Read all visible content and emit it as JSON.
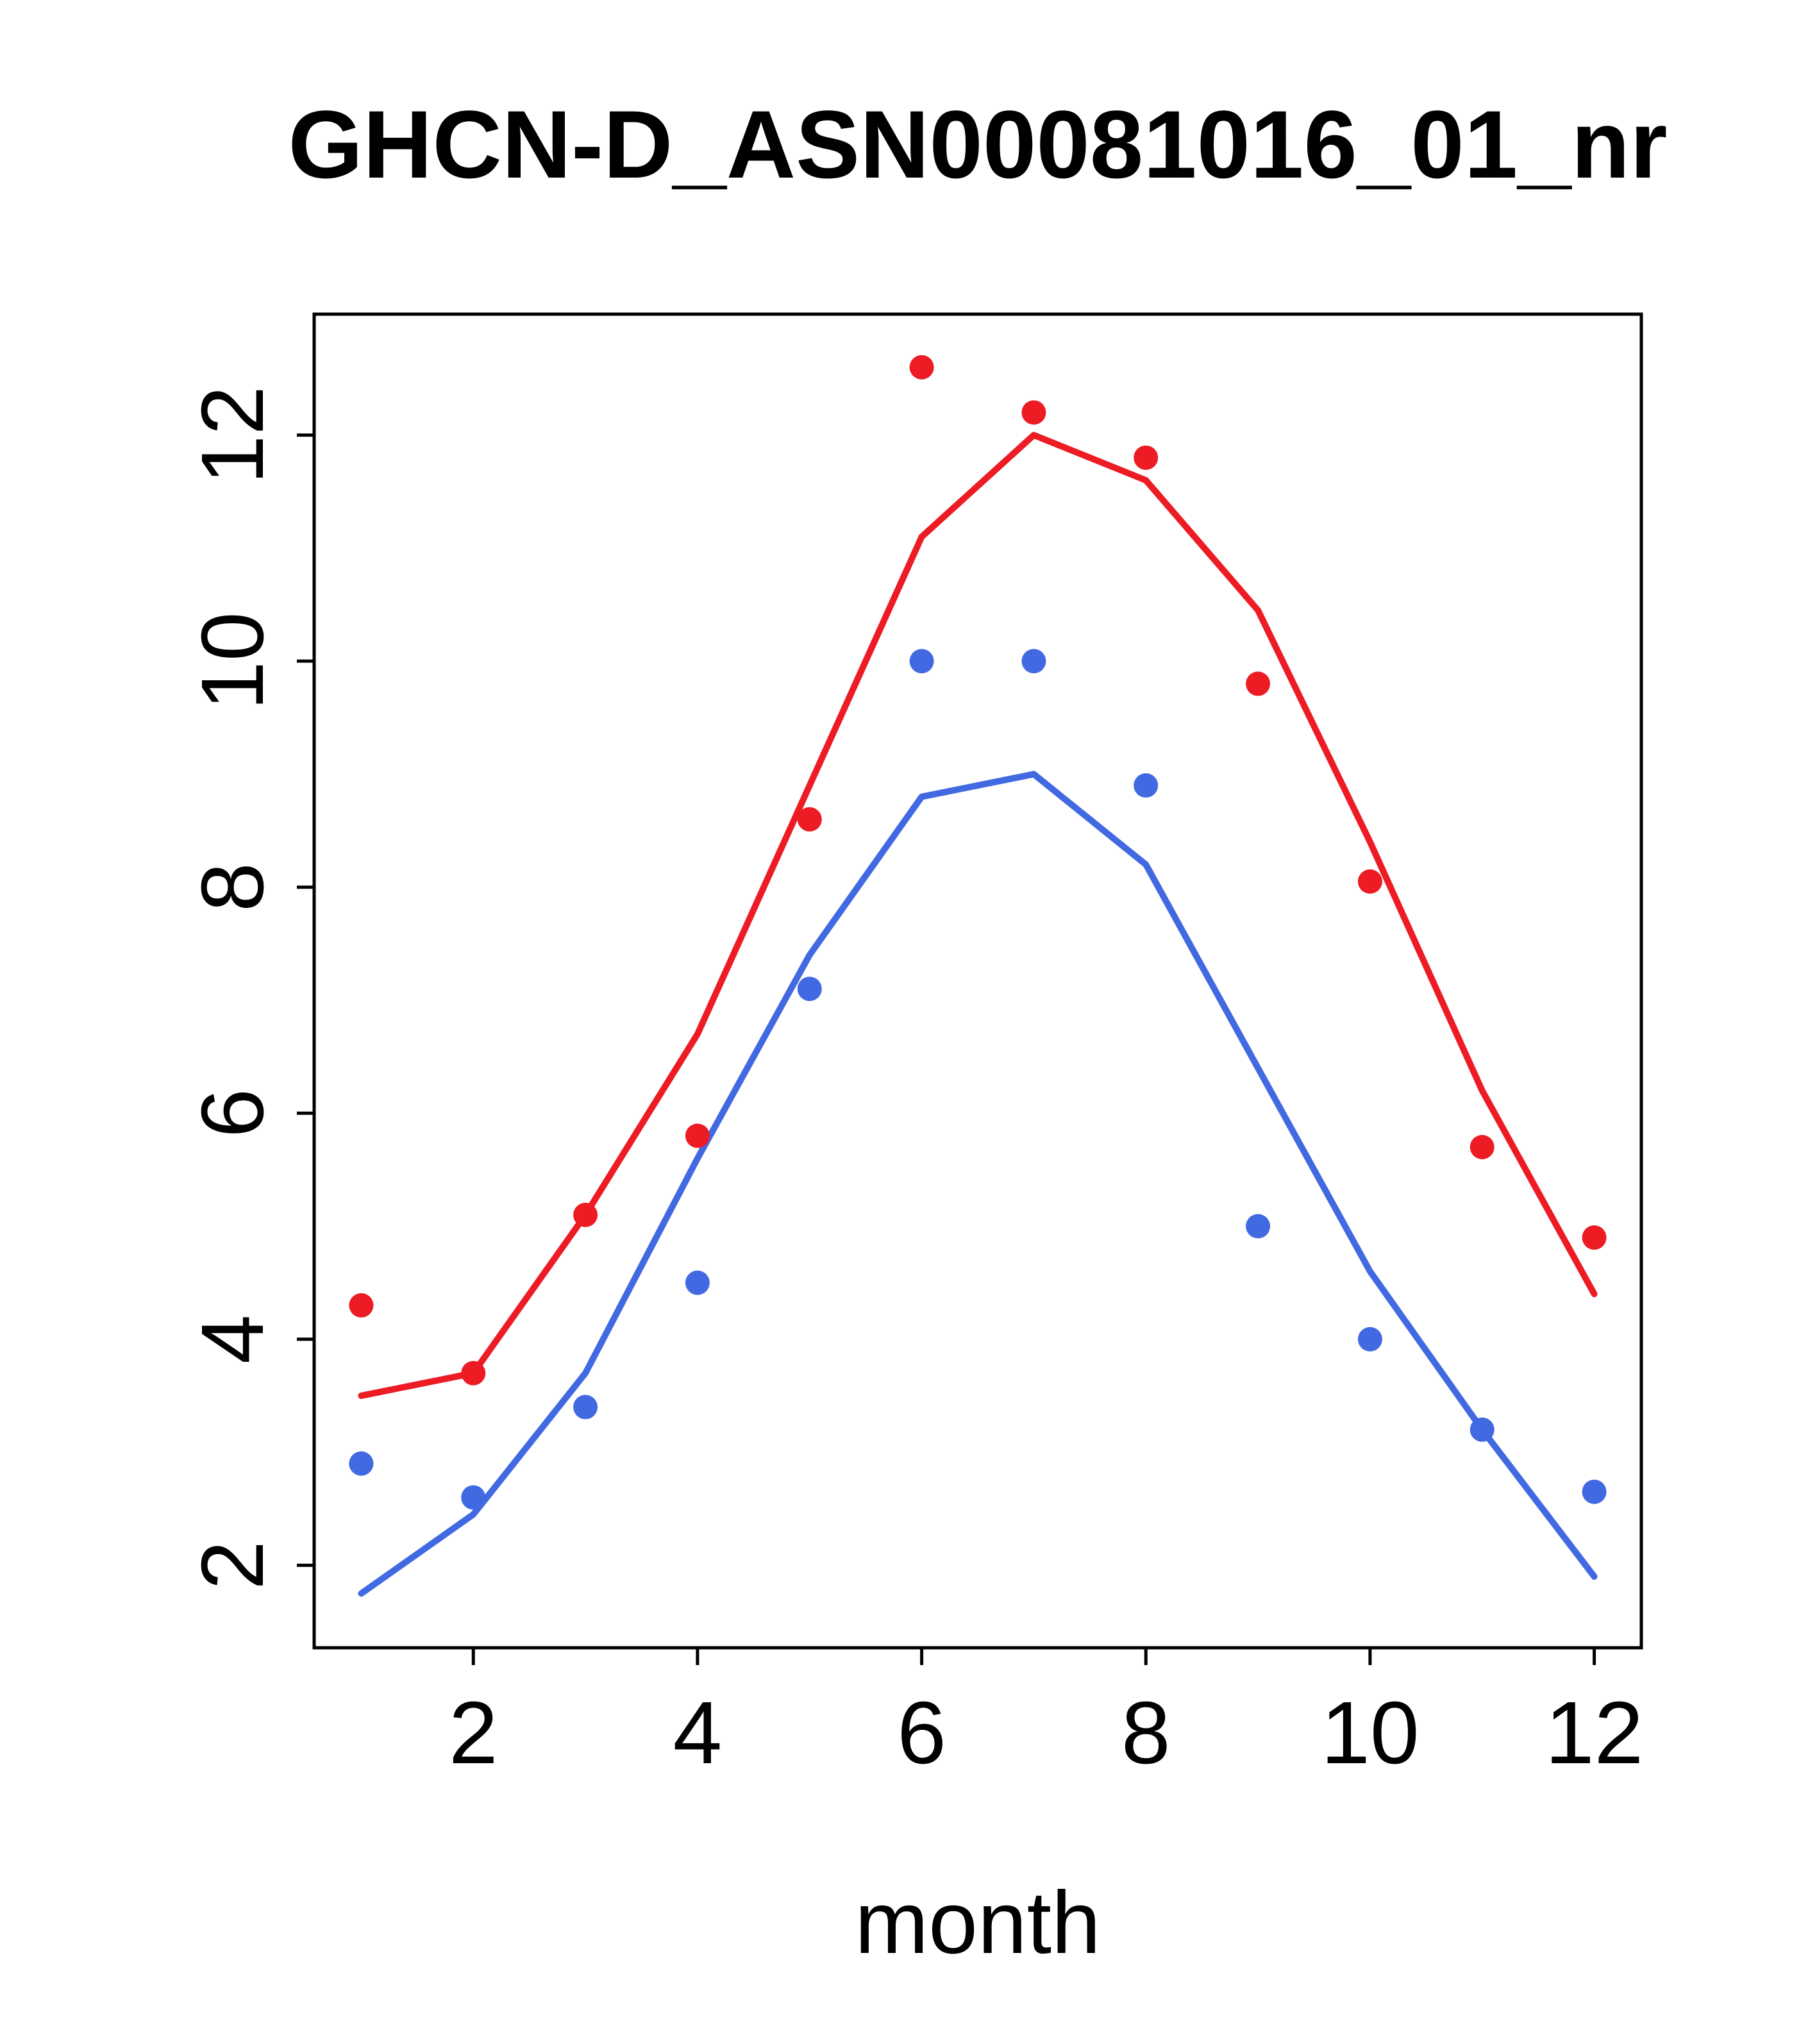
{
  "figure": {
    "background": "#ffffff",
    "frame_color": "#000000"
  },
  "chart_data": {
    "type": "scatter+line",
    "title": "GHCN-D_ASN00081016_01_nr",
    "xlabel": "month",
    "ylabel": "",
    "x": [
      1,
      2,
      3,
      4,
      5,
      6,
      7,
      8,
      9,
      10,
      11,
      12
    ],
    "xlim": [
      0.58,
      12.42
    ],
    "ylim": [
      1.27,
      13.07
    ],
    "xticks": [
      2,
      4,
      6,
      8,
      10,
      12
    ],
    "yticks": [
      2,
      4,
      6,
      8,
      10,
      12
    ],
    "grid": false,
    "legend": "none",
    "colors": {
      "red": "#ED1B24",
      "blue": "#4169E1"
    },
    "series": [
      {
        "name": "blue-line",
        "style": "line",
        "color": "#4169E1",
        "values": [
          1.75,
          2.45,
          3.7,
          5.6,
          7.4,
          8.8,
          9.0,
          8.2,
          6.4,
          4.6,
          3.2,
          1.9
        ]
      },
      {
        "name": "red-line",
        "style": "line",
        "color": "#ED1B24",
        "values": [
          3.5,
          3.7,
          5.1,
          6.7,
          8.9,
          11.1,
          12.0,
          11.6,
          10.45,
          8.4,
          6.2,
          4.4
        ]
      },
      {
        "name": "blue-points",
        "style": "points",
        "color": "#4169E1",
        "values": [
          2.9,
          2.6,
          3.4,
          4.5,
          7.1,
          10.0,
          10.0,
          8.9,
          5.0,
          4.0,
          3.2,
          2.65
        ]
      },
      {
        "name": "red-points",
        "style": "points",
        "color": "#ED1B24",
        "values": [
          4.3,
          3.7,
          5.1,
          5.8,
          8.6,
          12.6,
          12.2,
          11.8,
          9.8,
          8.05,
          5.7,
          4.9
        ]
      }
    ]
  }
}
